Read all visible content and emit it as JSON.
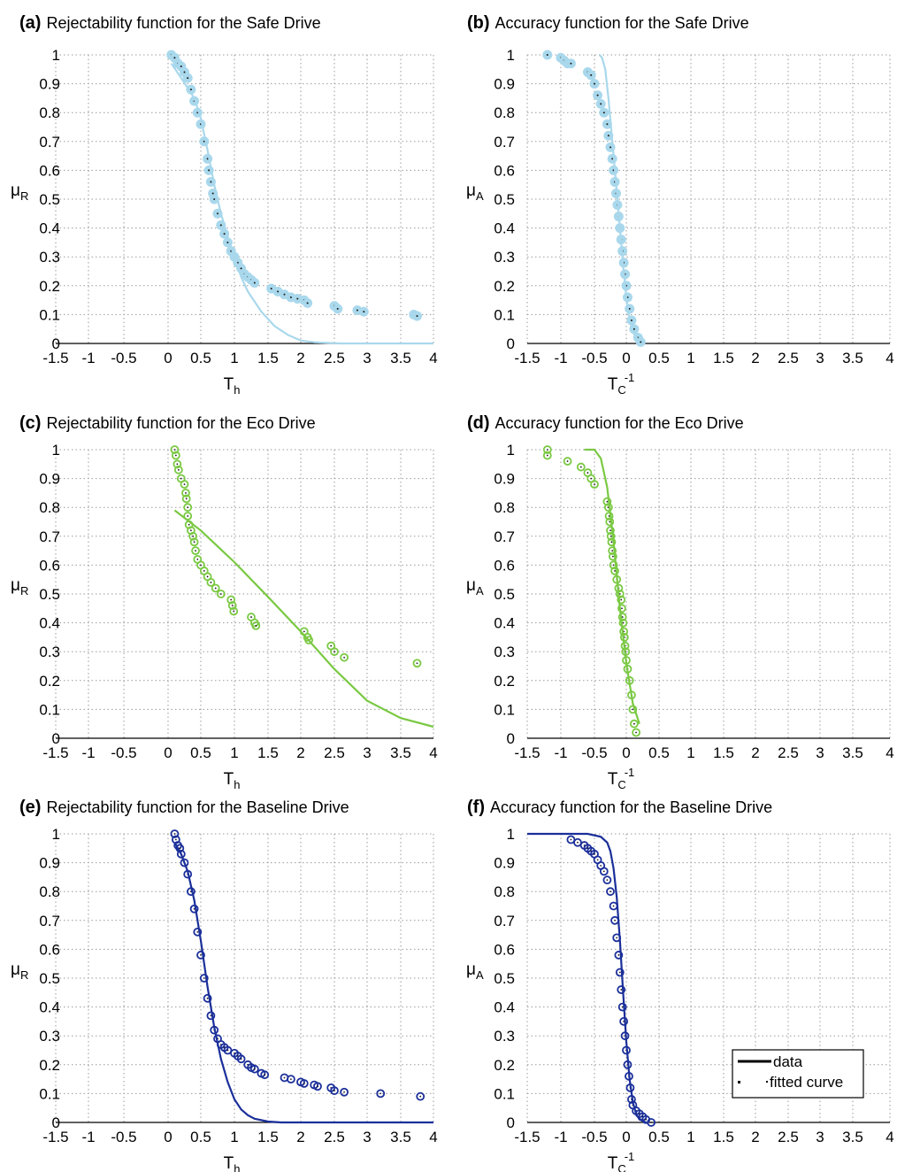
{
  "colors": {
    "safe": "#a9d8ec",
    "eco": "#7ac943",
    "baseline": "#1b2f9a",
    "grid": "#9a9a9a"
  },
  "legend": {
    "data_label": "data",
    "fitted_label": "fitted curve",
    "placement": "inside lower right of panel (f)"
  },
  "chart_data": [
    {
      "panel": "(a)",
      "title": "Rejectability function for the Safe Drive",
      "type": "scatter",
      "xlabel_main": "T",
      "xlabel_sub": "h",
      "xlabel_sup": "",
      "ylabel_main": "μ",
      "ylabel_sub": "R",
      "xlim": [
        -1.5,
        4
      ],
      "ylim": [
        0,
        1
      ],
      "xticks": [
        "-1.5",
        "-1",
        "-0.5",
        "0",
        "0.5",
        "1",
        "1.5",
        "2",
        "2.5",
        "3",
        "3.5",
        "4"
      ],
      "yticks": [
        "0",
        "0.1",
        "0.2",
        "0.3",
        "0.4",
        "0.5",
        "0.6",
        "0.7",
        "0.8",
        "0.9",
        "1"
      ],
      "grid": true,
      "color": "#a9d8ec",
      "marker_style": "thick",
      "series": [
        {
          "role": "data",
          "x": [
            0.05,
            0.1,
            0.15,
            0.2,
            0.25,
            0.3,
            0.35,
            0.4,
            0.45,
            0.5,
            0.55,
            0.6,
            0.62,
            0.65,
            0.68,
            0.7,
            0.75,
            0.8,
            0.85,
            0.9,
            0.95,
            1.0,
            1.05,
            1.1,
            1.15,
            1.2,
            1.25,
            1.3,
            1.55,
            1.65,
            1.75,
            1.85,
            1.95,
            2.05,
            2.1,
            2.5,
            2.55,
            2.85,
            2.95,
            3.7,
            3.75
          ],
          "y": [
            1.0,
            0.99,
            0.97,
            0.96,
            0.94,
            0.92,
            0.88,
            0.84,
            0.8,
            0.76,
            0.7,
            0.64,
            0.6,
            0.56,
            0.52,
            0.5,
            0.45,
            0.41,
            0.38,
            0.35,
            0.32,
            0.3,
            0.28,
            0.26,
            0.24,
            0.23,
            0.22,
            0.21,
            0.19,
            0.18,
            0.17,
            0.16,
            0.155,
            0.15,
            0.14,
            0.13,
            0.12,
            0.115,
            0.11,
            0.1,
            0.095
          ]
        },
        {
          "role": "fitted",
          "x": [
            0.05,
            0.2,
            0.4,
            0.5,
            0.6,
            0.7,
            0.8,
            0.9,
            1.0,
            1.1,
            1.2,
            1.4,
            1.6,
            1.8,
            2.0,
            2.2,
            2.6,
            3.0,
            3.5,
            4.0
          ],
          "y": [
            0.97,
            0.92,
            0.85,
            0.78,
            0.67,
            0.55,
            0.45,
            0.37,
            0.3,
            0.23,
            0.18,
            0.11,
            0.06,
            0.03,
            0.01,
            0.004,
            0.0,
            0.0,
            0.0,
            0.0
          ]
        }
      ]
    },
    {
      "panel": "(b)",
      "title": "Accuracy function for the Safe Drive",
      "type": "scatter",
      "xlabel_main": "T",
      "xlabel_sub": "C",
      "xlabel_sup": "-1",
      "ylabel_main": "μ",
      "ylabel_sub": "A",
      "xlim": [
        -1.5,
        4
      ],
      "ylim": [
        0,
        1
      ],
      "xticks": [
        "-1.5",
        "-1",
        "-0.5",
        "0",
        "0.5",
        "1",
        "1.5",
        "2",
        "2.5",
        "3",
        "3.5",
        "4"
      ],
      "yticks": [
        "0",
        "0.1",
        "0.2",
        "0.3",
        "0.4",
        "0.5",
        "0.6",
        "0.7",
        "0.8",
        "0.9",
        "1"
      ],
      "grid": true,
      "color": "#a9d8ec",
      "marker_style": "thick",
      "series": [
        {
          "role": "data",
          "x": [
            -1.2,
            -1.0,
            -0.95,
            -0.9,
            -0.85,
            -0.6,
            -0.55,
            -0.5,
            -0.45,
            -0.4,
            -0.35,
            -0.3,
            -0.28,
            -0.25,
            -0.22,
            -0.2,
            -0.18,
            -0.16,
            -0.14,
            -0.12,
            -0.1,
            -0.08,
            -0.06,
            -0.04,
            -0.02,
            0.0,
            0.02,
            0.05,
            0.08,
            0.12,
            0.18,
            0.22
          ],
          "y": [
            1.0,
            0.99,
            0.98,
            0.97,
            0.97,
            0.94,
            0.93,
            0.9,
            0.86,
            0.83,
            0.8,
            0.76,
            0.72,
            0.68,
            0.64,
            0.6,
            0.56,
            0.52,
            0.48,
            0.44,
            0.4,
            0.36,
            0.32,
            0.28,
            0.24,
            0.2,
            0.16,
            0.12,
            0.08,
            0.05,
            0.02,
            0.005
          ]
        },
        {
          "role": "fitted",
          "x": [
            -0.42,
            -0.38,
            -0.33,
            -0.28,
            -0.22,
            -0.16,
            -0.1,
            -0.05,
            0.0,
            0.05,
            0.1,
            0.15,
            0.2
          ],
          "y": [
            1.0,
            0.99,
            0.95,
            0.85,
            0.7,
            0.55,
            0.4,
            0.27,
            0.16,
            0.08,
            0.04,
            0.02,
            0.01
          ]
        }
      ]
    },
    {
      "panel": "(c)",
      "title": "Rejectability function for the Eco Drive",
      "type": "scatter",
      "xlabel_main": "T",
      "xlabel_sub": "h",
      "xlabel_sup": "",
      "ylabel_main": "μ",
      "ylabel_sub": "R",
      "xlim": [
        -1.5,
        4
      ],
      "ylim": [
        0,
        1
      ],
      "xticks": [
        "-1.5",
        "-1",
        "-0.5",
        "0",
        "0.5",
        "1",
        "1.5",
        "2",
        "2.5",
        "3",
        "3.5",
        "4"
      ],
      "yticks": [
        "0",
        "0.1",
        "0.2",
        "0.3",
        "0.4",
        "0.5",
        "0.6",
        "0.7",
        "0.8",
        "0.9",
        "1"
      ],
      "grid": true,
      "color": "#7ac943",
      "marker_style": "ring",
      "series": [
        {
          "role": "data",
          "x": [
            0.1,
            0.12,
            0.14,
            0.16,
            0.2,
            0.25,
            0.27,
            0.28,
            0.3,
            0.3,
            0.32,
            0.35,
            0.38,
            0.4,
            0.42,
            0.45,
            0.5,
            0.55,
            0.6,
            0.65,
            0.72,
            0.8,
            0.95,
            0.97,
            0.99,
            1.25,
            1.3,
            1.32,
            2.05,
            2.1,
            2.12,
            2.45,
            2.5,
            2.65,
            3.75
          ],
          "y": [
            1.0,
            0.98,
            0.95,
            0.93,
            0.9,
            0.88,
            0.85,
            0.83,
            0.8,
            0.77,
            0.74,
            0.72,
            0.7,
            0.68,
            0.65,
            0.62,
            0.6,
            0.58,
            0.56,
            0.54,
            0.52,
            0.5,
            0.48,
            0.46,
            0.44,
            0.42,
            0.4,
            0.39,
            0.37,
            0.35,
            0.34,
            0.32,
            0.3,
            0.28,
            0.26
          ]
        },
        {
          "role": "fitted",
          "x": [
            0.1,
            0.5,
            1.0,
            1.5,
            2.0,
            2.5,
            3.0,
            3.5,
            4.0
          ],
          "y": [
            0.79,
            0.72,
            0.61,
            0.49,
            0.37,
            0.24,
            0.13,
            0.07,
            0.04
          ]
        }
      ]
    },
    {
      "panel": "(d)",
      "title": "Accuracy function for the Eco Drive",
      "type": "scatter",
      "xlabel_main": "T",
      "xlabel_sub": "C",
      "xlabel_sup": "-1",
      "ylabel_main": "μ",
      "ylabel_sub": "A",
      "xlim": [
        -1.5,
        4
      ],
      "ylim": [
        0,
        1
      ],
      "xticks": [
        "-1.5",
        "-1",
        "-0.5",
        "0",
        "0.5",
        "1",
        "1.5",
        "2",
        "2.5",
        "3",
        "3.5",
        "4"
      ],
      "yticks": [
        "0",
        "0.1",
        "0.2",
        "0.3",
        "0.4",
        "0.5",
        "0.6",
        "0.7",
        "0.8",
        "0.9",
        "1"
      ],
      "grid": true,
      "color": "#7ac943",
      "marker_style": "ring",
      "series": [
        {
          "role": "data",
          "x": [
            -1.2,
            -1.2,
            -0.9,
            -0.7,
            -0.6,
            -0.55,
            -0.5,
            -0.3,
            -0.28,
            -0.27,
            -0.26,
            -0.25,
            -0.24,
            -0.23,
            -0.22,
            -0.21,
            -0.2,
            -0.18,
            -0.15,
            -0.12,
            -0.1,
            -0.08,
            -0.07,
            -0.06,
            -0.05,
            -0.04,
            -0.03,
            -0.02,
            -0.01,
            0.0,
            0.02,
            0.05,
            0.08,
            0.1,
            0.12,
            0.15
          ],
          "y": [
            1.0,
            0.98,
            0.96,
            0.94,
            0.92,
            0.9,
            0.88,
            0.82,
            0.8,
            0.77,
            0.75,
            0.72,
            0.7,
            0.68,
            0.65,
            0.63,
            0.6,
            0.58,
            0.55,
            0.52,
            0.5,
            0.48,
            0.45,
            0.42,
            0.4,
            0.37,
            0.35,
            0.32,
            0.3,
            0.27,
            0.24,
            0.2,
            0.15,
            0.1,
            0.05,
            0.02
          ]
        },
        {
          "role": "fitted",
          "x": [
            -0.65,
            -0.5,
            -0.4,
            -0.3,
            -0.2,
            -0.1,
            0.0,
            0.1,
            0.2
          ],
          "y": [
            1.0,
            1.0,
            0.97,
            0.87,
            0.68,
            0.45,
            0.26,
            0.12,
            0.05
          ]
        }
      ]
    },
    {
      "panel": "(e)",
      "title": "Rejectability function for the Baseline Drive",
      "type": "scatter",
      "xlabel_main": "T",
      "xlabel_sub": "h",
      "xlabel_sup": "",
      "ylabel_main": "μ",
      "ylabel_sub": "R",
      "xlim": [
        -1.5,
        4
      ],
      "ylim": [
        0,
        1
      ],
      "xticks": [
        "-1.5",
        "-1",
        "-0.5",
        "0",
        "0.5",
        "1",
        "1.5",
        "2",
        "2.5",
        "3",
        "3.5",
        "4"
      ],
      "yticks": [
        "0",
        "0.1",
        "0.2",
        "0.3",
        "0.4",
        "0.5",
        "0.6",
        "0.7",
        "0.8",
        "0.9",
        "1"
      ],
      "grid": true,
      "color": "#1b2f9a",
      "marker_style": "ring",
      "series": [
        {
          "role": "data",
          "x": [
            0.1,
            0.12,
            0.15,
            0.18,
            0.2,
            0.25,
            0.3,
            0.35,
            0.4,
            0.45,
            0.5,
            0.55,
            0.6,
            0.65,
            0.7,
            0.75,
            0.8,
            0.85,
            0.9,
            1.0,
            1.05,
            1.1,
            1.2,
            1.25,
            1.3,
            1.4,
            1.45,
            1.75,
            1.85,
            2.0,
            2.05,
            2.2,
            2.25,
            2.45,
            2.5,
            2.65,
            3.2,
            3.8
          ],
          "y": [
            1.0,
            0.98,
            0.96,
            0.95,
            0.93,
            0.9,
            0.86,
            0.8,
            0.74,
            0.66,
            0.58,
            0.5,
            0.43,
            0.37,
            0.32,
            0.29,
            0.27,
            0.26,
            0.25,
            0.24,
            0.23,
            0.22,
            0.2,
            0.19,
            0.185,
            0.17,
            0.165,
            0.155,
            0.15,
            0.14,
            0.135,
            0.13,
            0.125,
            0.12,
            0.11,
            0.105,
            0.1,
            0.09
          ]
        },
        {
          "role": "fitted",
          "x": [
            0.1,
            0.2,
            0.3,
            0.4,
            0.5,
            0.6,
            0.7,
            0.8,
            0.9,
            1.0,
            1.1,
            1.2,
            1.3,
            1.5,
            1.7,
            2.0,
            3.0,
            4.0
          ],
          "y": [
            0.97,
            0.93,
            0.87,
            0.77,
            0.63,
            0.47,
            0.33,
            0.22,
            0.14,
            0.08,
            0.045,
            0.025,
            0.013,
            0.003,
            0.0,
            0.0,
            0.0,
            0.0
          ]
        }
      ]
    },
    {
      "panel": "(f)",
      "title": "Accuracy function for the Baseline Drive",
      "type": "scatter",
      "xlabel_main": "T",
      "xlabel_sub": "C",
      "xlabel_sup": "-1",
      "ylabel_main": "μ",
      "ylabel_sub": "A",
      "xlim": [
        -1.5,
        4
      ],
      "ylim": [
        0,
        1
      ],
      "xticks": [
        "-1.5",
        "-1",
        "-0.5",
        "0",
        "0.5",
        "1",
        "1.5",
        "2",
        "2.5",
        "3",
        "3.5",
        "4"
      ],
      "yticks": [
        "0",
        "0.1",
        "0.2",
        "0.3",
        "0.4",
        "0.5",
        "0.6",
        "0.7",
        "0.8",
        "0.9",
        "1"
      ],
      "grid": true,
      "color": "#1b2f9a",
      "marker_style": "ring",
      "series": [
        {
          "role": "data",
          "x": [
            -0.85,
            -0.75,
            -0.65,
            -0.6,
            -0.55,
            -0.5,
            -0.45,
            -0.4,
            -0.35,
            -0.3,
            -0.25,
            -0.2,
            -0.18,
            -0.15,
            -0.12,
            -0.1,
            -0.08,
            -0.06,
            -0.04,
            -0.02,
            0.0,
            0.02,
            0.04,
            0.06,
            0.08,
            0.1,
            0.15,
            0.2,
            0.25,
            0.3,
            0.38
          ],
          "y": [
            0.98,
            0.97,
            0.96,
            0.95,
            0.94,
            0.93,
            0.91,
            0.89,
            0.87,
            0.84,
            0.8,
            0.75,
            0.7,
            0.64,
            0.58,
            0.52,
            0.46,
            0.4,
            0.35,
            0.3,
            0.25,
            0.2,
            0.16,
            0.12,
            0.08,
            0.06,
            0.04,
            0.03,
            0.02,
            0.01,
            0.0
          ]
        },
        {
          "role": "fitted",
          "x": [
            -1.5,
            -1.0,
            -0.6,
            -0.4,
            -0.3,
            -0.25,
            -0.2,
            -0.15,
            -0.1,
            -0.05,
            0.0,
            0.05,
            0.1,
            0.15,
            0.2,
            0.3
          ],
          "y": [
            1.0,
            1.0,
            1.0,
            0.99,
            0.97,
            0.94,
            0.88,
            0.78,
            0.63,
            0.45,
            0.28,
            0.15,
            0.07,
            0.03,
            0.01,
            0.0
          ]
        }
      ]
    }
  ]
}
